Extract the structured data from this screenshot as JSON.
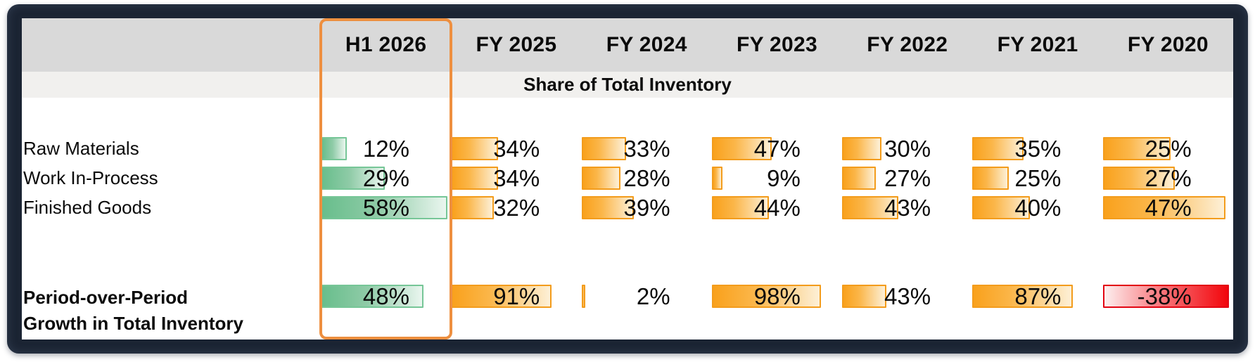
{
  "chart_data": {
    "type": "table",
    "subtype": "inline-bar-table",
    "columns": [
      "H1 2026",
      "FY 2025",
      "FY 2024",
      "FY 2023",
      "FY 2022",
      "FY 2021",
      "FY 2020"
    ],
    "highlighted_column": "H1 2026",
    "section_header": "Share of Total Inventory",
    "rows": [
      {
        "label": "Raw Materials",
        "values_pct": [
          12,
          34,
          33,
          47,
          30,
          35,
          25
        ],
        "bar_widths_pct_of_column": [
          20,
          36,
          34,
          46,
          30,
          39,
          52
        ]
      },
      {
        "label": "Work In-Process",
        "values_pct": [
          29,
          34,
          28,
          9,
          27,
          25,
          27
        ],
        "bar_widths_pct_of_column": [
          49,
          36,
          30,
          8,
          26,
          28,
          55
        ]
      },
      {
        "label": "Finished Goods",
        "values_pct": [
          58,
          32,
          39,
          44,
          43,
          40,
          47
        ],
        "bar_widths_pct_of_column": [
          97,
          33,
          40,
          44,
          43,
          44,
          94
        ]
      }
    ],
    "growth_row": {
      "label": "Period-over-Period Growth in Total Inventory",
      "label_lines": [
        "Period-over-Period",
        "Growth in Total Inventory"
      ],
      "values_pct": [
        48,
        91,
        2,
        98,
        43,
        87,
        -38
      ],
      "bar_widths_pct_of_column": [
        79,
        77,
        3,
        84,
        34,
        77,
        97
      ]
    },
    "legend": "none",
    "value_format": "percent"
  },
  "colors": {
    "text": "#0b0b0b",
    "frame_bg": "#1b2433",
    "header_bg": "#d9d9d9",
    "subheader_bg": "#f1f0ee",
    "highlight_border": "#ee8f3f",
    "bar_orange_start": "#f9a11c",
    "bar_orange_mid": "#fbb649",
    "bar_orange_end": "#fdf0d7",
    "bar_orange_border": "#f39c1c",
    "bar_green_start": "#68be8c",
    "bar_green_mid": "#8fcba7",
    "bar_green_end": "#eaf6ef",
    "bar_green_border": "#76c697",
    "bar_red_start": "#fdefef",
    "bar_red_mid": "#f8797e",
    "bar_red_end": "#f2060c",
    "bar_red_border": "#e30613"
  }
}
